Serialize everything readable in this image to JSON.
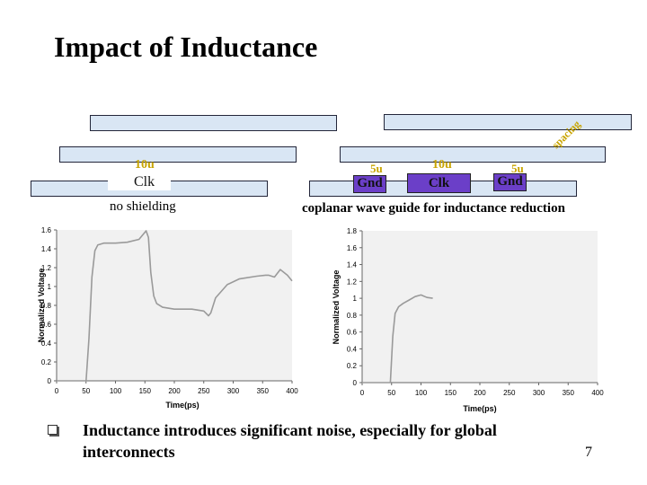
{
  "slide": {
    "title": "Impact of Inductance",
    "page_number": "7"
  },
  "diagram": {
    "left": {
      "wire_label": "Clk",
      "width_label": "10u",
      "caption": "no shielding"
    },
    "right": {
      "gnd_left_label": "Gnd",
      "gnd_left_width": "5u",
      "clk_label": "Clk",
      "clk_width": "10u",
      "gnd_right_label": "Gnd",
      "gnd_right_width": "5u",
      "spacing_label": "spacing",
      "caption": "coplanar wave guide for inductance reduction"
    }
  },
  "chart_data": [
    {
      "type": "line",
      "title": "",
      "xlabel": "Time(ps)",
      "ylabel": "Normalized Voltage",
      "xlim": [
        0,
        400
      ],
      "ylim": [
        0,
        1.6
      ],
      "xticks": [
        "0",
        "50",
        "100",
        "150",
        "200",
        "250",
        "300",
        "350",
        "400"
      ],
      "yticks": [
        "0",
        "0.2",
        "0.4",
        "0.6",
        "0.8",
        "1",
        "1.2",
        "1.4",
        "1.6"
      ],
      "series": [
        {
          "name": "no shielding",
          "x": [
            0,
            50,
            55,
            60,
            65,
            70,
            80,
            100,
            120,
            140,
            148,
            152,
            156,
            160,
            165,
            170,
            180,
            200,
            230,
            250,
            258,
            262,
            270,
            290,
            310,
            340,
            355,
            360,
            370,
            380,
            392,
            400
          ],
          "y": [
            0,
            0,
            0.45,
            1.1,
            1.38,
            1.44,
            1.46,
            1.46,
            1.47,
            1.5,
            1.56,
            1.59,
            1.52,
            1.15,
            0.9,
            0.82,
            0.78,
            0.76,
            0.76,
            0.74,
            0.69,
            0.72,
            0.88,
            1.02,
            1.08,
            1.11,
            1.12,
            1.12,
            1.1,
            1.18,
            1.12,
            1.06
          ]
        }
      ]
    },
    {
      "type": "line",
      "title": "",
      "xlabel": "Time(ps)",
      "ylabel": "Normalized Voltage",
      "xlim": [
        0,
        400
      ],
      "ylim": [
        0,
        1.8
      ],
      "xticks": [
        "0",
        "50",
        "100",
        "150",
        "200",
        "250",
        "300",
        "350",
        "400"
      ],
      "yticks": [
        "0",
        "0.2",
        "0.4",
        "0.6",
        "0.8",
        "1",
        "1.2",
        "1.4",
        "1.6",
        "1.8"
      ],
      "series": [
        {
          "name": "coplanar wave guide",
          "x": [
            0,
            48,
            52,
            56,
            62,
            70,
            80,
            90,
            100,
            110,
            120
          ],
          "y": [
            0,
            0,
            0.55,
            0.82,
            0.9,
            0.94,
            0.98,
            1.02,
            1.04,
            1.01,
            1.0
          ]
        }
      ]
    }
  ],
  "bullet": {
    "icon": "checkbox-bullet-icon",
    "text": "Inductance introduces significant noise, especially for global interconnects"
  }
}
